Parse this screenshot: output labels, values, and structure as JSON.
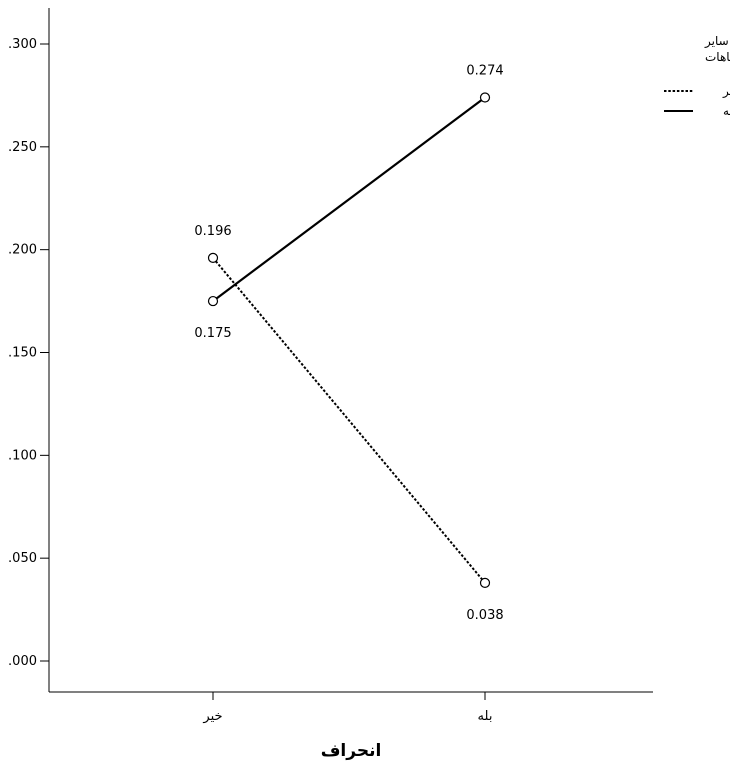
{
  "chart_data": {
    "type": "line",
    "title": "",
    "xlabel": "انحراف",
    "ylabel": "",
    "categories": [
      "خیر",
      "بله"
    ],
    "ylim": [
      0,
      0.3
    ],
    "yticks": [
      ".000",
      ".050",
      ".100",
      ".150",
      ".200",
      ".250",
      ".300"
    ],
    "ytick_values": [
      0,
      0.05,
      0.1,
      0.15,
      0.2,
      0.25,
      0.3
    ],
    "grid": false,
    "legend": {
      "title_lines": [
        "سایر",
        "اشتباهات"
      ],
      "placement": "top-right"
    },
    "series": [
      {
        "name": "خیر",
        "style": "dotted",
        "color": "#000000",
        "values": [
          0.196,
          0.038
        ],
        "labels": [
          "0.196",
          "0.038"
        ],
        "label_positions": [
          "above",
          "below"
        ]
      },
      {
        "name": "بله",
        "style": "solid",
        "color": "#000000",
        "values": [
          0.175,
          0.274
        ],
        "labels": [
          "0.175",
          "0.274"
        ],
        "label_positions": [
          "below",
          "above"
        ]
      }
    ]
  }
}
